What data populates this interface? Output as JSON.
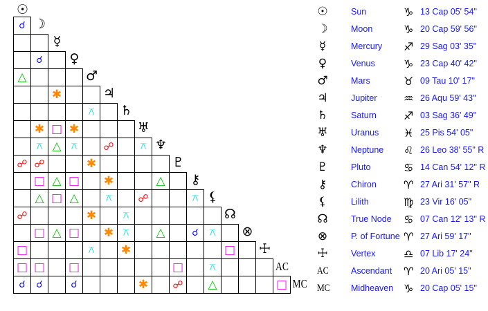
{
  "aspect_symbols": {
    "conjunction": "☌",
    "opposition": "☍",
    "trine": "△",
    "square": "□",
    "sextile": "✱",
    "quincunx": "⚻"
  },
  "aspect_colors": {
    "conjunction": "#1010ee",
    "opposition": "#ee1010",
    "trine": "#10c010",
    "square": "#ee10ee",
    "sextile": "#ff8800",
    "quincunx": "#10e0e0"
  },
  "points": [
    {
      "glyph": "☉",
      "icon": "sun-icon",
      "name": "Sun",
      "sign_glyph": "♑",
      "sign_icon": "capricorn-icon",
      "position": "13 Cap 05' 54\""
    },
    {
      "glyph": "☽",
      "icon": "moon-icon",
      "name": "Moon",
      "sign_glyph": "♑",
      "sign_icon": "capricorn-icon",
      "position": "20 Cap 59' 56\""
    },
    {
      "glyph": "☿",
      "icon": "mercury-icon",
      "name": "Mercury",
      "sign_glyph": "♐",
      "sign_icon": "sagittarius-icon",
      "position": "29 Sag 03' 35\""
    },
    {
      "glyph": "♀",
      "icon": "venus-icon",
      "name": "Venus",
      "sign_glyph": "♑",
      "sign_icon": "capricorn-icon",
      "position": "23 Cap 40' 42\""
    },
    {
      "glyph": "♂",
      "icon": "mars-icon",
      "name": "Mars",
      "sign_glyph": "♉",
      "sign_icon": "taurus-icon",
      "position": "09 Tau 10' 17\""
    },
    {
      "glyph": "♃",
      "icon": "jupiter-icon",
      "name": "Jupiter",
      "sign_glyph": "♒",
      "sign_icon": "aquarius-icon",
      "position": "26 Aqu 59' 43\""
    },
    {
      "glyph": "♄",
      "icon": "saturn-icon",
      "name": "Saturn",
      "sign_glyph": "♐",
      "sign_icon": "sagittarius-icon",
      "position": "03 Sag 36' 49\""
    },
    {
      "glyph": "♅",
      "icon": "uranus-icon",
      "name": "Uranus",
      "sign_glyph": "♓",
      "sign_icon": "pisces-icon",
      "position": "25 Pis 54' 05\""
    },
    {
      "glyph": "♆",
      "icon": "neptune-icon",
      "name": "Neptune",
      "sign_glyph": "♌",
      "sign_icon": "leo-icon",
      "position": "26 Leo 38' 55\" R"
    },
    {
      "glyph": "♇",
      "icon": "pluto-icon",
      "name": "Pluto",
      "sign_glyph": "♋",
      "sign_icon": "cancer-icon",
      "position": "14 Can 54' 12\" R"
    },
    {
      "glyph": "⚷",
      "icon": "chiron-icon",
      "name": "Chiron",
      "sign_glyph": "♈",
      "sign_icon": "aries-icon",
      "position": "27 Ari 31' 57\" R"
    },
    {
      "glyph": "⚸",
      "icon": "lilith-icon",
      "name": "Lilith",
      "sign_glyph": "♍",
      "sign_icon": "virgo-icon",
      "position": "23 Vir 16' 05\""
    },
    {
      "glyph": "☊",
      "icon": "true-node-icon",
      "name": "True Node",
      "sign_glyph": "♋",
      "sign_icon": "cancer-icon",
      "position": "07 Can 12' 13\" R"
    },
    {
      "glyph": "⊗",
      "icon": "part-of-fortune-icon",
      "name": "P. of Fortune",
      "sign_glyph": "♈",
      "sign_icon": "aries-icon",
      "position": "27 Ari 59' 17\""
    },
    {
      "glyph": "☩",
      "icon": "vertex-icon",
      "name": "Vertex",
      "sign_glyph": "♎",
      "sign_icon": "libra-icon",
      "position": "07 Lib 17' 24\""
    },
    {
      "glyph": "AC",
      "icon": "ascendant-icon",
      "name": "Ascendant",
      "sign_glyph": "♈",
      "sign_icon": "aries-icon",
      "position": "20 Ari 05' 15\""
    },
    {
      "glyph": "MC",
      "icon": "midheaven-icon",
      "name": "Midheaven",
      "sign_glyph": "♑",
      "sign_icon": "capricorn-icon",
      "position": "20 Cap 05' 15\""
    }
  ],
  "aspect_grid": [
    [
      "conjunction"
    ],
    [
      "",
      ""
    ],
    [
      "",
      "conjunction",
      ""
    ],
    [
      "trine",
      "",
      "",
      ""
    ],
    [
      "",
      "",
      "sextile",
      "",
      ""
    ],
    [
      "",
      "",
      "",
      "",
      "quincunx",
      ""
    ],
    [
      "",
      "sextile",
      "square",
      "sextile",
      "",
      "",
      ""
    ],
    [
      "",
      "quincunx",
      "trine",
      "quincunx",
      "",
      "opposition",
      "",
      "quincunx"
    ],
    [
      "opposition",
      "opposition",
      "",
      "",
      "sextile",
      "",
      "",
      "",
      ""
    ],
    [
      "",
      "square",
      "trine",
      "square",
      "",
      "sextile",
      "",
      "",
      "trine",
      ""
    ],
    [
      "",
      "trine",
      "square",
      "trine",
      "",
      "quincunx",
      "",
      "opposition",
      "",
      "",
      "quincunx"
    ],
    [
      "opposition",
      "",
      "",
      "",
      "sextile",
      "",
      "quincunx",
      "",
      "",
      "",
      "",
      ""
    ],
    [
      "",
      "square",
      "trine",
      "square",
      "",
      "sextile",
      "quincunx",
      "",
      "trine",
      "",
      "conjunction",
      "quincunx",
      ""
    ],
    [
      "square",
      "",
      "",
      "",
      "quincunx",
      "",
      "sextile",
      "",
      "",
      "",
      "",
      "",
      "square",
      ""
    ],
    [
      "square",
      "square",
      "",
      "square",
      "",
      "",
      "",
      "",
      "",
      "square",
      "",
      "quincunx",
      "",
      "",
      ""
    ],
    [
      "conjunction",
      "conjunction",
      "",
      "conjunction",
      "",
      "",
      "",
      "sextile",
      "",
      "opposition",
      "",
      "trine",
      "",
      "",
      "",
      "square"
    ]
  ]
}
